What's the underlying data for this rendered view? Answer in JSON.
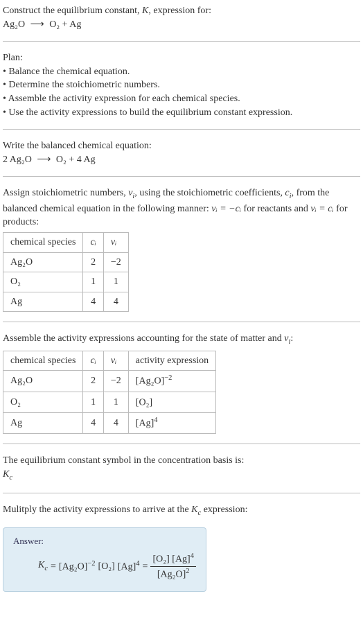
{
  "header": {
    "line1_pre": "Construct the equilibrium constant, ",
    "line1_K": "K",
    "line1_post": ", expression for:",
    "eq_lhs": "Ag₂O",
    "eq_arrow": "⟶",
    "eq_rhs": "O₂ + Ag"
  },
  "plan": {
    "title": "Plan:",
    "items": [
      "• Balance the chemical equation.",
      "• Determine the stoichiometric numbers.",
      "• Assemble the activity expression for each chemical species.",
      "• Use the activity expressions to build the equilibrium constant expression."
    ]
  },
  "balanced": {
    "intro": "Write the balanced chemical equation:",
    "eq_lhs": "2 Ag₂O",
    "eq_arrow": "⟶",
    "eq_rhs": "O₂ + 4 Ag"
  },
  "stoich": {
    "intro_pre": "Assign stoichiometric numbers, ",
    "nu": "ν",
    "sub_i": "i",
    "intro_mid1": ", using the stoichiometric coefficients, ",
    "c": "c",
    "intro_mid2": ", from the balanced chemical equation in the following manner: ",
    "rel_reactants": "νᵢ = −cᵢ",
    "intro_mid3": " for reactants and ",
    "rel_products": "νᵢ = cᵢ",
    "intro_post": " for products:",
    "headers": {
      "species": "chemical species",
      "ci": "cᵢ",
      "nui": "νᵢ"
    },
    "rows": [
      {
        "species": "Ag₂O",
        "ci": "2",
        "nui": "−2"
      },
      {
        "species": "O₂",
        "ci": "1",
        "nui": "1"
      },
      {
        "species": "Ag",
        "ci": "4",
        "nui": "4"
      }
    ]
  },
  "activity": {
    "intro_pre": "Assemble the activity expressions accounting for the state of matter and ",
    "nu": "ν",
    "sub_i": "i",
    "intro_post": ":",
    "headers": {
      "species": "chemical species",
      "ci": "cᵢ",
      "nui": "νᵢ",
      "act": "activity expression"
    },
    "rows": [
      {
        "species": "Ag₂O",
        "ci": "2",
        "nui": "−2",
        "act_base": "[Ag₂O]",
        "act_exp": "−2"
      },
      {
        "species": "O₂",
        "ci": "1",
        "nui": "1",
        "act_base": "[O₂]",
        "act_exp": ""
      },
      {
        "species": "Ag",
        "ci": "4",
        "nui": "4",
        "act_base": "[Ag]",
        "act_exp": "4"
      }
    ]
  },
  "symbol": {
    "line1": "The equilibrium constant symbol in the concentration basis is:",
    "Kc_K": "K",
    "Kc_sub": "c"
  },
  "multiply": {
    "intro_pre": "Mulitply the activity expressions to arrive at the ",
    "Kc_K": "K",
    "Kc_sub": "c",
    "intro_post": " expression:"
  },
  "answer": {
    "label": "Answer:",
    "Kc_K": "K",
    "Kc_sub": "c",
    "equals": " = ",
    "term1_base": "[Ag₂O]",
    "term1_exp": "−2",
    "term2_base": " [O₂] ",
    "term3_base": "[Ag]",
    "term3_exp": "4",
    "equals2": " = ",
    "frac_num1": "[O₂] ",
    "frac_num2_base": "[Ag]",
    "frac_num2_exp": "4",
    "frac_den_base": "[Ag₂O]",
    "frac_den_exp": "2"
  },
  "style": {
    "background": "#ffffff",
    "text_color": "#333333",
    "divider_color": "#bbbbbb",
    "answer_bg": "#e0edf5",
    "answer_border": "#b8d0e0",
    "font_family": "Georgia, Times New Roman, serif",
    "base_fontsize": 14
  }
}
